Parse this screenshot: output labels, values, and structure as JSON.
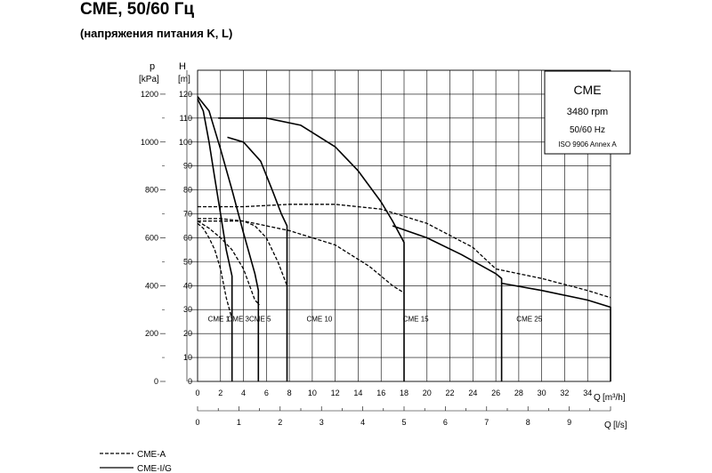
{
  "page": {
    "title": "CME, 50/60 Гц",
    "subtitle": "(напряжения питания K, L)"
  },
  "chart_data": {
    "type": "line",
    "axes": {
      "p": {
        "label": "p",
        "unit": "[kPa]",
        "range": [
          0,
          1200
        ],
        "ticks": [
          0,
          200,
          400,
          600,
          800,
          1000,
          1200
        ]
      },
      "H": {
        "label": "H",
        "unit": "[m]",
        "range": [
          0,
          120
        ],
        "ticks": [
          0,
          10,
          20,
          30,
          40,
          50,
          60,
          70,
          80,
          90,
          100,
          110,
          120
        ]
      },
      "Q_m3h": {
        "label": "Q",
        "unit": "[m³/h]",
        "range": [
          0,
          36
        ],
        "ticks": [
          0,
          2,
          4,
          6,
          8,
          10,
          12,
          14,
          16,
          18,
          20,
          22,
          24,
          26,
          28,
          30,
          32,
          34
        ]
      },
      "Q_ls": {
        "label": "Q",
        "unit": "[l/s]",
        "range": [
          0,
          10
        ],
        "ticks": [
          0,
          1,
          2,
          3,
          4,
          5,
          6,
          7,
          8,
          9
        ]
      }
    },
    "grid": true,
    "info_box": {
      "title": "CME",
      "speed": "3480 rpm",
      "freq": "50/60 Hz",
      "standard": "ISO 9906 Annex A"
    },
    "regions": [
      "CME 1",
      "CME 3",
      "CME 5",
      "CME 10",
      "CME 15",
      "CME 25"
    ],
    "series": [
      {
        "name": "CME-A",
        "style": "dashed",
        "curves": [
          {
            "model": "CME 1",
            "points": [
              [
                0,
                66
              ],
              [
                0.5,
                64
              ],
              [
                1,
                60
              ],
              [
                1.5,
                55
              ],
              [
                2,
                47
              ],
              [
                2.5,
                35
              ],
              [
                3,
                26
              ]
            ]
          },
          {
            "model": "CME 3",
            "points": [
              [
                0,
                67
              ],
              [
                1,
                64
              ],
              [
                2,
                60
              ],
              [
                3,
                55
              ],
              [
                4,
                47
              ],
              [
                5,
                34
              ],
              [
                5.4,
                32
              ]
            ]
          },
          {
            "model": "CME 5",
            "points": [
              [
                0,
                68
              ],
              [
                2,
                68
              ],
              [
                4,
                67
              ],
              [
                5,
                65
              ],
              [
                6,
                60
              ],
              [
                7,
                50
              ],
              [
                7.8,
                40
              ]
            ]
          },
          {
            "model": "CME 10",
            "points": [
              [
                0,
                67
              ],
              [
                4,
                67
              ],
              [
                8,
                63
              ],
              [
                12,
                57
              ],
              [
                15,
                48
              ],
              [
                17,
                40
              ],
              [
                18,
                37
              ]
            ]
          },
          {
            "model": "CME 15",
            "points": [
              [
                0,
                73
              ],
              [
                4,
                73
              ],
              [
                8,
                74
              ],
              [
                12,
                74
              ],
              [
                16,
                72
              ],
              [
                20,
                66
              ],
              [
                24,
                56
              ],
              [
                26,
                47
              ]
            ]
          },
          {
            "model": "CME 25",
            "points": [
              [
                26,
                47
              ],
              [
                30,
                43
              ],
              [
                34,
                38
              ],
              [
                36,
                35
              ]
            ]
          }
        ]
      },
      {
        "name": "CME-I/G",
        "style": "solid",
        "curves": [
          {
            "model": "CME 1",
            "points": [
              [
                0,
                118
              ],
              [
                0.5,
                113
              ],
              [
                1,
                100
              ],
              [
                1.5,
                85
              ],
              [
                2,
                70
              ],
              [
                2.5,
                55
              ],
              [
                3,
                44
              ],
              [
                3,
                0
              ]
            ]
          },
          {
            "model": "CME 3",
            "points": [
              [
                0,
                119
              ],
              [
                1,
                113
              ],
              [
                2,
                97
              ],
              [
                3,
                80
              ],
              [
                4,
                62
              ],
              [
                5,
                45
              ],
              [
                5.3,
                38
              ],
              [
                5.3,
                0
              ]
            ]
          },
          {
            "model": "CME 5",
            "points": [
              [
                2.6,
                102
              ],
              [
                4,
                100
              ],
              [
                5.5,
                92
              ],
              [
                6.5,
                80
              ],
              [
                7.3,
                70
              ],
              [
                7.8,
                65
              ],
              [
                7.8,
                0
              ]
            ]
          },
          {
            "model": "CME 10",
            "points": [
              [
                1.8,
                110
              ],
              [
                6,
                110
              ],
              [
                9,
                107
              ],
              [
                12,
                98
              ],
              [
                14,
                88
              ],
              [
                16,
                75
              ],
              [
                17,
                67
              ],
              [
                18,
                58
              ],
              [
                18,
                0
              ]
            ]
          },
          {
            "model": "CME 15",
            "points": [
              [
                17,
                65
              ],
              [
                20,
                60
              ],
              [
                23,
                53
              ],
              [
                26,
                45
              ],
              [
                26.5,
                43
              ],
              [
                26.5,
                0
              ]
            ]
          },
          {
            "model": "CME 25",
            "points": [
              [
                26.5,
                41
              ],
              [
                30,
                38
              ],
              [
                34,
                34
              ],
              [
                36,
                31
              ],
              [
                36,
                0
              ]
            ]
          }
        ]
      }
    ]
  }
}
